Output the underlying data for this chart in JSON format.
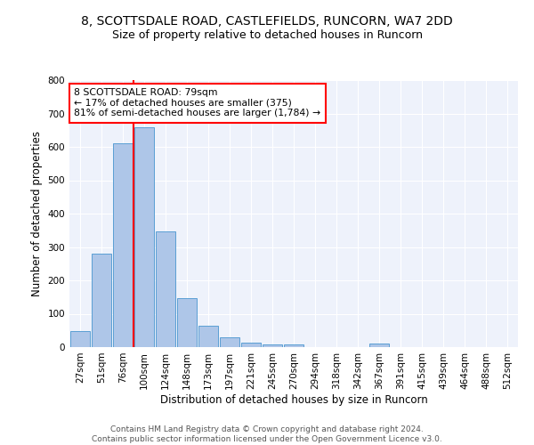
{
  "title_line1": "8, SCOTTSDALE ROAD, CASTLEFIELDS, RUNCORN, WA7 2DD",
  "title_line2": "Size of property relative to detached houses in Runcorn",
  "xlabel": "Distribution of detached houses by size in Runcorn",
  "ylabel": "Number of detached properties",
  "categories": [
    "27sqm",
    "51sqm",
    "76sqm",
    "100sqm",
    "124sqm",
    "148sqm",
    "173sqm",
    "197sqm",
    "221sqm",
    "245sqm",
    "270sqm",
    "294sqm",
    "318sqm",
    "342sqm",
    "367sqm",
    "391sqm",
    "415sqm",
    "439sqm",
    "464sqm",
    "488sqm",
    "512sqm"
  ],
  "values": [
    48,
    280,
    612,
    660,
    348,
    148,
    65,
    30,
    14,
    8,
    8,
    0,
    0,
    0,
    10,
    0,
    0,
    0,
    0,
    0,
    0
  ],
  "bar_color": "#aec6e8",
  "bar_edge_color": "#5a9fd4",
  "annotation_text": "8 SCOTTSDALE ROAD: 79sqm\n← 17% of detached houses are smaller (375)\n81% of semi-detached houses are larger (1,784) →",
  "annotation_box_color": "white",
  "annotation_box_edge_color": "red",
  "vline_color": "red",
  "ylim": [
    0,
    800
  ],
  "yticks": [
    0,
    100,
    200,
    300,
    400,
    500,
    600,
    700,
    800
  ],
  "bg_color": "#eef2fb",
  "grid_color": "white",
  "footer_line1": "Contains HM Land Registry data © Crown copyright and database right 2024.",
  "footer_line2": "Contains public sector information licensed under the Open Government Licence v3.0.",
  "title_fontsize": 10,
  "subtitle_fontsize": 9,
  "tick_fontsize": 7.5,
  "axis_label_fontsize": 8.5,
  "footer_fontsize": 6.5
}
